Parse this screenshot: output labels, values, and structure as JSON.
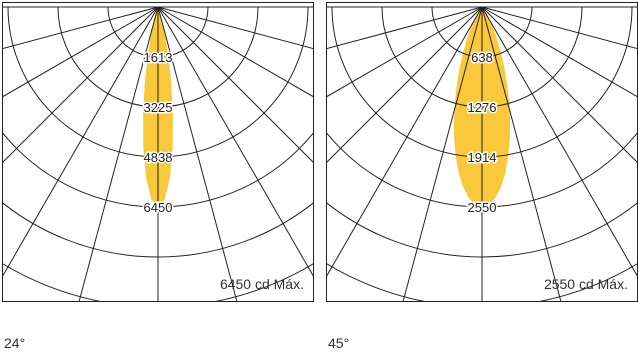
{
  "colors": {
    "beam_fill": "#f9c93b",
    "grid_line": "#222222",
    "frame": "#222222"
  },
  "chart_data": [
    {
      "type": "polar-intensity",
      "ring_labels": [
        "1613",
        "3225",
        "4838",
        "6450"
      ],
      "ring_values": [
        1613,
        3225,
        4838,
        6450
      ],
      "r_max": 6450,
      "max_text": "6450 cd Máx.",
      "beam_angle_text": "24°",
      "beam_half_angle_deg": 12
    },
    {
      "type": "polar-intensity",
      "ring_labels": [
        "638",
        "1276",
        "1914",
        "2550"
      ],
      "ring_values": [
        638,
        1276,
        1914,
        2550
      ],
      "r_max": 2550,
      "max_text": "2550 cd Máx.",
      "beam_angle_text": "45°",
      "beam_half_angle_deg": 22.5
    }
  ]
}
